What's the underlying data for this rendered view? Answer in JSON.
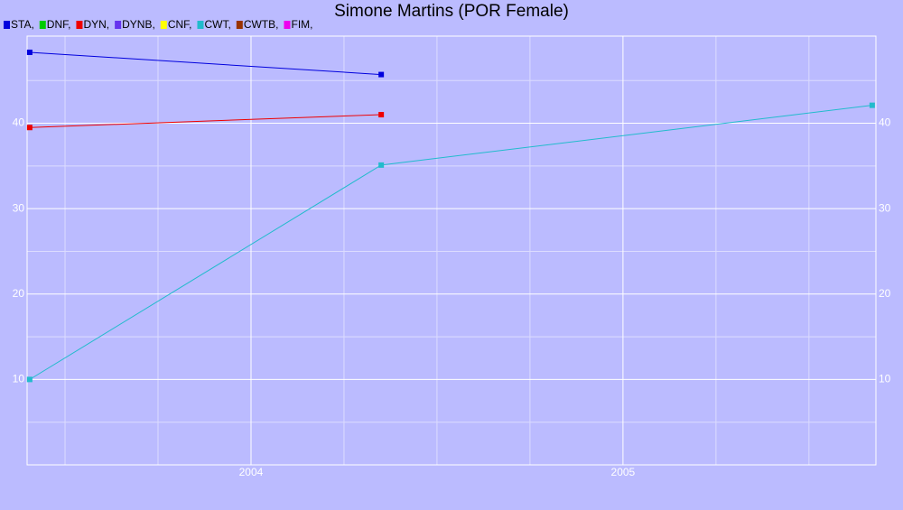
{
  "chart_data": {
    "type": "line",
    "title": "Simone Martins (POR Female)",
    "xlim": [
      2003.398,
      2005.68
    ],
    "xticks": [
      2004,
      2005
    ],
    "xminor": [
      2003.5,
      2003.75,
      2004.25,
      2004.5,
      2004.75,
      2005.25,
      2005.5
    ],
    "ylim": [
      0,
      50.2
    ],
    "yticks": [
      10,
      20,
      30,
      40
    ],
    "yminor": [
      5,
      15,
      25,
      35,
      45
    ],
    "grid": true,
    "background": "#bbbbff",
    "series": [
      {
        "name": "STA,",
        "color": "#0000dd",
        "x": [
          2003.405,
          2004.35
        ],
        "values": [
          48.3,
          45.7
        ]
      },
      {
        "name": "DNF,",
        "color": "#00cc00",
        "x": [],
        "values": []
      },
      {
        "name": "DYN,",
        "color": "#ee0000",
        "x": [
          2003.405,
          2004.35
        ],
        "values": [
          39.5,
          41.0
        ]
      },
      {
        "name": "DYNB,",
        "color": "#6633ee",
        "x": [],
        "values": []
      },
      {
        "name": "CNF,",
        "color": "#ffff00",
        "x": [],
        "values": []
      },
      {
        "name": "CWT,",
        "color": "#22bbcc",
        "x": [
          2003.405,
          2004.35,
          2005.67
        ],
        "values": [
          10,
          35.1,
          42.1
        ]
      },
      {
        "name": "CWTB,",
        "color": "#993300",
        "x": [],
        "values": []
      },
      {
        "name": "FIM,",
        "color": "#ee00ee",
        "x": [],
        "values": []
      }
    ]
  }
}
